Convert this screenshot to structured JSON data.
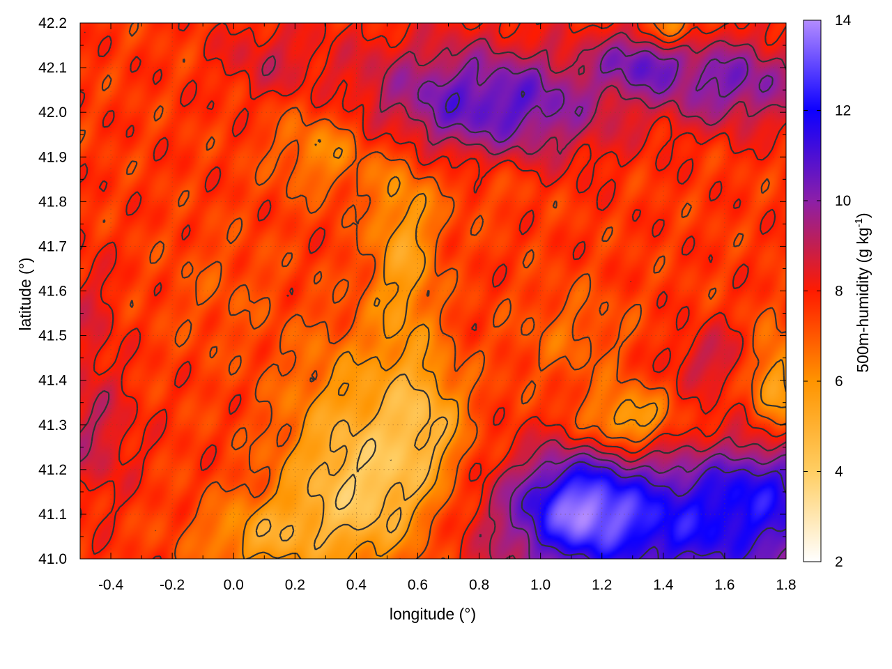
{
  "chart_data": {
    "type": "heatmap",
    "title": "",
    "xlabel": "longitude (°)",
    "ylabel": "latitude (°)",
    "xlim": [
      -0.5,
      1.8
    ],
    "ylim": [
      41.0,
      42.2
    ],
    "xticks": [
      {
        "value": -0.4,
        "label": "-0.4"
      },
      {
        "value": -0.2,
        "label": "-0.2"
      },
      {
        "value": 0.0,
        "label": "0.0"
      },
      {
        "value": 0.2,
        "label": "0.2"
      },
      {
        "value": 0.4,
        "label": "0.4"
      },
      {
        "value": 0.6,
        "label": "0.6"
      },
      {
        "value": 0.8,
        "label": "0.8"
      },
      {
        "value": 1.0,
        "label": "1.0"
      },
      {
        "value": 1.2,
        "label": "1.2"
      },
      {
        "value": 1.4,
        "label": "1.4"
      },
      {
        "value": 1.6,
        "label": "1.6"
      },
      {
        "value": 1.8,
        "label": "1.8"
      }
    ],
    "yticks": [
      {
        "value": 41.0,
        "label": "41.0"
      },
      {
        "value": 41.1,
        "label": "41.1"
      },
      {
        "value": 41.2,
        "label": "41.2"
      },
      {
        "value": 41.3,
        "label": "41.3"
      },
      {
        "value": 41.4,
        "label": "41.4"
      },
      {
        "value": 41.5,
        "label": "41.5"
      },
      {
        "value": 41.6,
        "label": "41.6"
      },
      {
        "value": 41.7,
        "label": "41.7"
      },
      {
        "value": 41.8,
        "label": "41.8"
      },
      {
        "value": 41.9,
        "label": "41.9"
      },
      {
        "value": 42.0,
        "label": "42.0"
      },
      {
        "value": 42.1,
        "label": "42.1"
      },
      {
        "value": 42.2,
        "label": "42.2"
      }
    ],
    "grid": true,
    "colorbar": {
      "label": "500m-humidity (g kg",
      "label_sup": "-1",
      "label_end": ")",
      "range": [
        2,
        14
      ],
      "ticks": [
        {
          "value": 2,
          "label": "2"
        },
        {
          "value": 4,
          "label": "4"
        },
        {
          "value": 6,
          "label": "6"
        },
        {
          "value": 8,
          "label": "8"
        },
        {
          "value": 10,
          "label": "10"
        },
        {
          "value": 12,
          "label": "12"
        },
        {
          "value": 14,
          "label": "14"
        }
      ],
      "palette": [
        {
          "value": 2,
          "color": "#ffffff"
        },
        {
          "value": 4,
          "color": "#ffce63"
        },
        {
          "value": 6,
          "color": "#ff9400"
        },
        {
          "value": 8,
          "color": "#ff1b00"
        },
        {
          "value": 9,
          "color": "#c21f50"
        },
        {
          "value": 10,
          "color": "#8c1fa8"
        },
        {
          "value": 12,
          "color": "#0d00ff"
        },
        {
          "value": 14,
          "color": "#b38cff"
        }
      ]
    },
    "field": {
      "base": 7.6,
      "features": [
        {
          "lon": 1.48,
          "lat": 41.08,
          "slon": 0.42,
          "slat": 0.11,
          "amp": 4.3
        },
        {
          "lon": 1.12,
          "lat": 41.12,
          "slon": 0.13,
          "slat": 0.08,
          "amp": 3.4
        },
        {
          "lon": 1.72,
          "lat": 41.18,
          "slon": 0.12,
          "slat": 0.06,
          "amp": 1.5
        },
        {
          "lon": 0.92,
          "lat": 42.02,
          "slon": 0.22,
          "slat": 0.09,
          "amp": 2.8
        },
        {
          "lon": 1.62,
          "lat": 42.07,
          "slon": 0.18,
          "slat": 0.07,
          "amp": 2.6
        },
        {
          "lon": 1.32,
          "lat": 42.12,
          "slon": 0.1,
          "slat": 0.05,
          "amp": 2.2
        },
        {
          "lon": 0.58,
          "lat": 42.03,
          "slon": 0.18,
          "slat": 0.1,
          "amp": 1.6
        },
        {
          "lon": 0.12,
          "lat": 42.12,
          "slon": 0.12,
          "slat": 0.06,
          "amp": 1.0
        },
        {
          "lon": -0.47,
          "lat": 41.28,
          "slon": 0.1,
          "slat": 0.1,
          "amp": 1.3
        },
        {
          "lon": -0.47,
          "lat": 41.55,
          "slon": 0.06,
          "slat": 0.1,
          "amp": 0.8
        },
        {
          "lon": 1.55,
          "lat": 41.45,
          "slon": 0.1,
          "slat": 0.05,
          "amp": 1.2
        },
        {
          "lon": 0.42,
          "lat": 41.15,
          "slon": 0.18,
          "slat": 0.12,
          "amp": -3.3
        },
        {
          "lon": 0.62,
          "lat": 41.32,
          "slon": 0.1,
          "slat": 0.1,
          "amp": -2.0
        },
        {
          "lon": 0.55,
          "lat": 41.7,
          "slon": 0.08,
          "slat": 0.18,
          "amp": -2.0
        },
        {
          "lon": 0.08,
          "lat": 41.05,
          "slon": 0.15,
          "slat": 0.06,
          "amp": -1.8
        },
        {
          "lon": 1.28,
          "lat": 41.31,
          "slon": 0.1,
          "slat": 0.05,
          "amp": -2.5
        },
        {
          "lon": 1.76,
          "lat": 41.4,
          "slon": 0.06,
          "slat": 0.08,
          "amp": -2.2
        },
        {
          "lon": 0.3,
          "lat": 41.92,
          "slon": 0.12,
          "slat": 0.07,
          "amp": -1.6
        },
        {
          "lon": 0.35,
          "lat": 41.38,
          "slon": 0.15,
          "slat": 0.12,
          "amp": -1.2
        },
        {
          "lon": 1.42,
          "lat": 42.19,
          "slon": 0.05,
          "slat": 0.03,
          "amp": -2.5
        },
        {
          "lon": 1.1,
          "lat": 41.5,
          "slon": 0.14,
          "slat": 0.08,
          "amp": -0.8
        },
        {
          "lon": 0.8,
          "lat": 41.85,
          "slon": 0.14,
          "slat": 0.06,
          "amp": -0.6
        },
        {
          "lon": -0.05,
          "lat": 41.6,
          "slon": 0.14,
          "slat": 0.1,
          "amp": -0.5
        }
      ]
    }
  }
}
